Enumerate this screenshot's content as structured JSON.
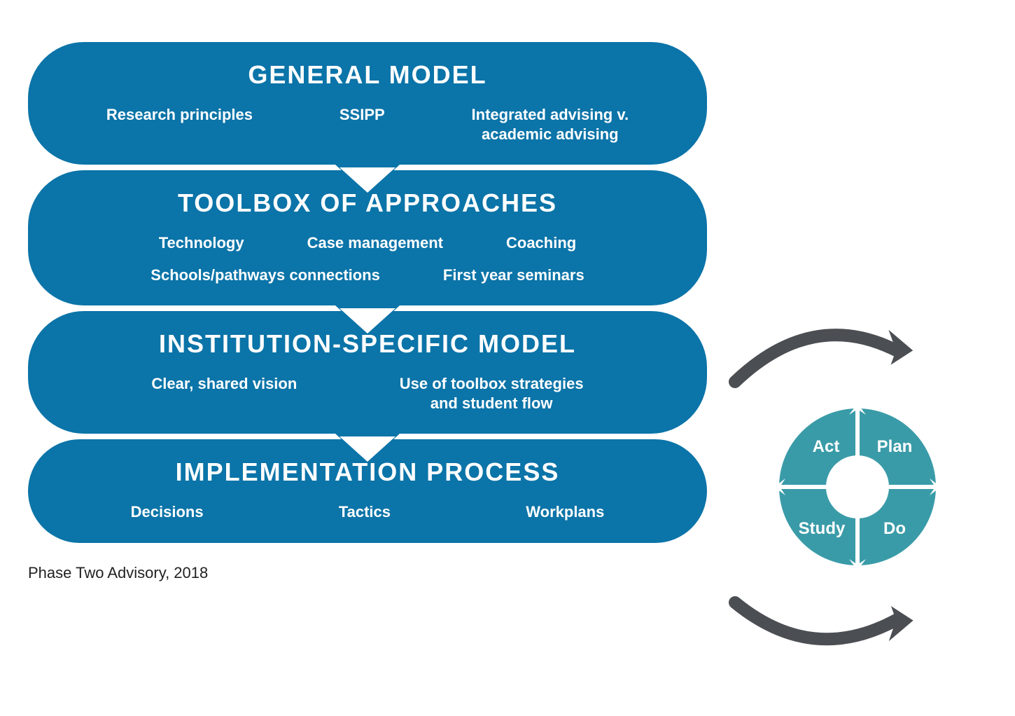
{
  "diagram": {
    "background_color": "#ffffff",
    "block_color": "#0b74a8",
    "block_text_color": "#ffffff",
    "arrow_color": "#4b4e52",
    "cycle_color": "#3a9ba8",
    "cycle_text_color": "#ffffff",
    "title_fontsize": 36,
    "title_fontweight": 800,
    "item_fontsize": 22,
    "item_fontweight": 700,
    "caption_fontsize": 22,
    "caption_color": "#222222",
    "block_radius": 80,
    "blocks": [
      {
        "id": "general-model",
        "title": "GENERAL MODEL",
        "items": [
          "Research principles",
          "SSIPP",
          "Integrated advising v. academic advising"
        ],
        "has_notch": false
      },
      {
        "id": "toolbox",
        "title": "TOOLBOX OF APPROACHES",
        "items": [
          "Technology",
          "Case management",
          "Coaching",
          "Schools/pathways connections",
          "First year seminars"
        ],
        "has_notch": true
      },
      {
        "id": "institution-specific",
        "title": "INSTITUTION-SPECIFIC MODEL",
        "items": [
          "Clear, shared vision",
          "Use of toolbox strategies and student flow"
        ],
        "has_notch": true
      },
      {
        "id": "implementation",
        "title": "IMPLEMENTATION PROCESS",
        "items": [
          "Decisions",
          "Tactics",
          "Workplans"
        ],
        "has_notch": true
      }
    ],
    "cycle": {
      "type": "pdsa-cycle",
      "segments": [
        "Act",
        "Plan",
        "Study",
        "Do"
      ]
    },
    "caption": "Phase Two Advisory, 2018"
  }
}
